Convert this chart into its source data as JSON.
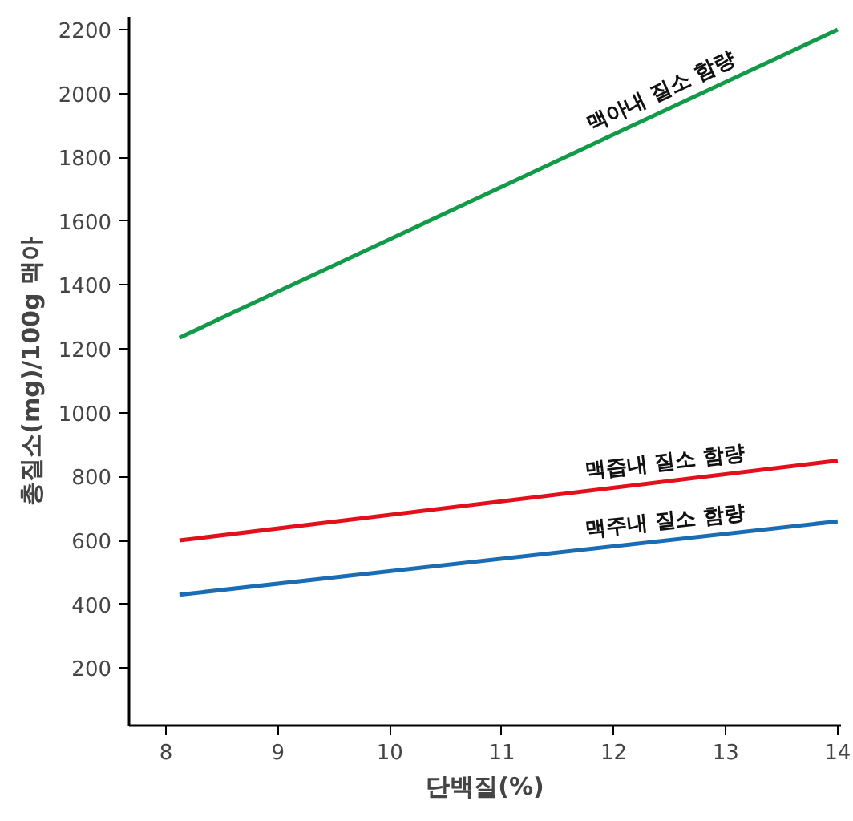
{
  "chart_data": {
    "type": "line",
    "xlabel": "단백질(%)",
    "ylabel": "총질소(mg)/100g 맥아",
    "x": [
      8.12,
      14
    ],
    "series": [
      {
        "name": "맥아내 질소 함량",
        "color": "#119a48",
        "values": [
          1235,
          2200
        ]
      },
      {
        "name": "맥즙내 질소 함량",
        "color": "#e3101b",
        "values": [
          600,
          850
        ]
      },
      {
        "name": "맥주내 질소 함량",
        "color": "#1a6db5",
        "values": [
          430,
          660
        ]
      }
    ],
    "xlim": [
      7.67,
      14.03
    ],
    "ylim": [
      20,
      2240
    ],
    "xticks": [
      8,
      9,
      10,
      11,
      12,
      13,
      14
    ],
    "yticks": [
      200,
      400,
      600,
      800,
      1000,
      1200,
      1400,
      1600,
      1800,
      2000,
      2200
    ],
    "marker": "none",
    "line_style": "solid"
  }
}
